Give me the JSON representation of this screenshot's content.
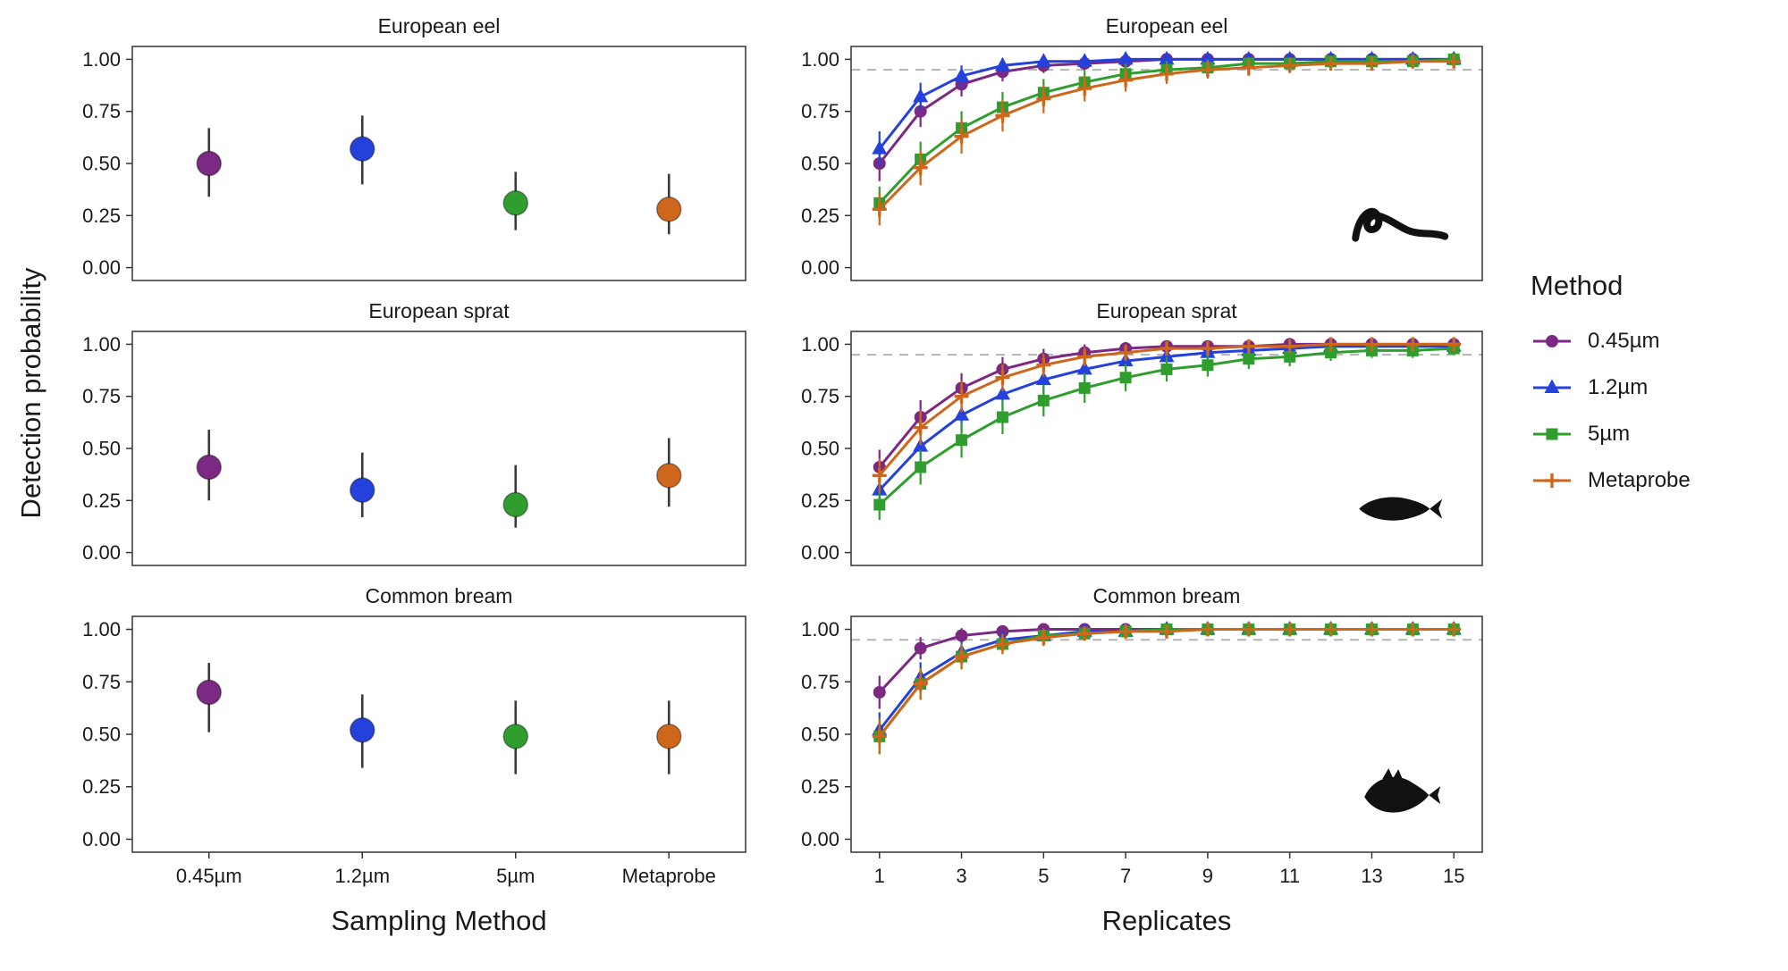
{
  "figure": {
    "ylabel": "Detection probability",
    "xlabel_left": "Sampling Method",
    "xlabel_right": "Replicates",
    "legend_title": "Method",
    "reference_line": 0.95,
    "panel_border_color": "#3f3f3f",
    "dashed_line_color": "#b3b3b3"
  },
  "methods": [
    {
      "label": "0.45µm",
      "color": "#7B2982",
      "marker": "circle"
    },
    {
      "label": "1.2µm",
      "color": "#2442DB",
      "marker": "triangle"
    },
    {
      "label": "5µm",
      "color": "#2F9E2F",
      "marker": "square"
    },
    {
      "label": "Metaprobe",
      "color": "#CE671C",
      "marker": "cross"
    }
  ],
  "chart_data": [
    {
      "id": "eel-dotplot",
      "type": "scatter",
      "panel": "dot",
      "title": "European eel",
      "categories": [
        "0.45µm",
        "1.2µm",
        "5µm",
        "Metaprobe"
      ],
      "values": [
        0.5,
        0.57,
        0.31,
        0.28
      ],
      "ci_low": [
        0.34,
        0.4,
        0.18,
        0.16
      ],
      "ci_high": [
        0.67,
        0.73,
        0.46,
        0.45
      ],
      "ylim": [
        0,
        1
      ],
      "yticks": [
        "0.00",
        "0.25",
        "0.50",
        "0.75",
        "1.00"
      ],
      "show_x_labels": false
    },
    {
      "id": "eel-curves",
      "type": "line",
      "panel": "accumulation",
      "title": "European eel",
      "icon": "eel",
      "x": [
        1,
        2,
        3,
        4,
        5,
        6,
        7,
        8,
        9,
        10,
        11,
        12,
        13,
        14,
        15
      ],
      "xticks": [
        1,
        3,
        5,
        7,
        9,
        11,
        13,
        15
      ],
      "ref_line": 0.95,
      "ylim": [
        0,
        1
      ],
      "yticks": [
        "0.00",
        "0.25",
        "0.50",
        "0.75",
        "1.00"
      ],
      "series": [
        {
          "name": "0.45µm",
          "values": [
            0.5,
            0.75,
            0.88,
            0.94,
            0.97,
            0.98,
            0.99,
            1.0,
            1.0,
            1.0,
            1.0,
            1.0,
            1.0,
            1.0,
            1.0
          ]
        },
        {
          "name": "1.2µm",
          "values": [
            0.57,
            0.82,
            0.92,
            0.97,
            0.99,
            0.99,
            1.0,
            1.0,
            1.0,
            1.0,
            1.0,
            1.0,
            1.0,
            1.0,
            1.0
          ]
        },
        {
          "name": "5µm",
          "values": [
            0.31,
            0.52,
            0.67,
            0.77,
            0.84,
            0.89,
            0.93,
            0.95,
            0.96,
            0.98,
            0.98,
            0.99,
            0.99,
            0.99,
            1.0
          ]
        },
        {
          "name": "Metaprobe",
          "values": [
            0.28,
            0.48,
            0.63,
            0.73,
            0.81,
            0.86,
            0.9,
            0.93,
            0.95,
            0.96,
            0.97,
            0.98,
            0.98,
            0.99,
            0.99
          ]
        }
      ],
      "show_x_labels": false
    },
    {
      "id": "sprat-dotplot",
      "type": "scatter",
      "panel": "dot",
      "title": "European sprat",
      "categories": [
        "0.45µm",
        "1.2µm",
        "5µm",
        "Metaprobe"
      ],
      "values": [
        0.41,
        0.3,
        0.23,
        0.37
      ],
      "ci_low": [
        0.25,
        0.17,
        0.12,
        0.22
      ],
      "ci_high": [
        0.59,
        0.48,
        0.42,
        0.55
      ],
      "ylim": [
        0,
        1
      ],
      "yticks": [
        "0.00",
        "0.25",
        "0.50",
        "0.75",
        "1.00"
      ],
      "show_x_labels": false
    },
    {
      "id": "sprat-curves",
      "type": "line",
      "panel": "accumulation",
      "title": "European sprat",
      "icon": "sprat",
      "x": [
        1,
        2,
        3,
        4,
        5,
        6,
        7,
        8,
        9,
        10,
        11,
        12,
        13,
        14,
        15
      ],
      "xticks": [
        1,
        3,
        5,
        7,
        9,
        11,
        13,
        15
      ],
      "ref_line": 0.95,
      "ylim": [
        0,
        1
      ],
      "yticks": [
        "0.00",
        "0.25",
        "0.50",
        "0.75",
        "1.00"
      ],
      "series": [
        {
          "name": "0.45µm",
          "values": [
            0.41,
            0.65,
            0.79,
            0.88,
            0.93,
            0.96,
            0.98,
            0.99,
            0.99,
            0.99,
            1.0,
            1.0,
            1.0,
            1.0,
            1.0
          ]
        },
        {
          "name": "1.2µm",
          "values": [
            0.3,
            0.51,
            0.66,
            0.76,
            0.83,
            0.88,
            0.92,
            0.94,
            0.96,
            0.97,
            0.98,
            0.99,
            0.99,
            0.99,
            0.99
          ]
        },
        {
          "name": "5µm",
          "values": [
            0.23,
            0.41,
            0.54,
            0.65,
            0.73,
            0.79,
            0.84,
            0.88,
            0.9,
            0.93,
            0.94,
            0.96,
            0.97,
            0.97,
            0.98
          ]
        },
        {
          "name": "Metaprobe",
          "values": [
            0.37,
            0.6,
            0.75,
            0.84,
            0.9,
            0.94,
            0.96,
            0.98,
            0.98,
            0.99,
            0.99,
            1.0,
            1.0,
            1.0,
            1.0
          ]
        }
      ],
      "show_x_labels": false
    },
    {
      "id": "bream-dotplot",
      "type": "scatter",
      "panel": "dot",
      "title": "Common bream",
      "categories": [
        "0.45µm",
        "1.2µm",
        "5µm",
        "Metaprobe"
      ],
      "values": [
        0.7,
        0.52,
        0.49,
        0.49
      ],
      "ci_low": [
        0.51,
        0.34,
        0.31,
        0.31
      ],
      "ci_high": [
        0.84,
        0.69,
        0.66,
        0.66
      ],
      "ylim": [
        0,
        1
      ],
      "yticks": [
        "0.00",
        "0.25",
        "0.50",
        "0.75",
        "1.00"
      ],
      "show_x_labels": true
    },
    {
      "id": "bream-curves",
      "type": "line",
      "panel": "accumulation",
      "title": "Common bream",
      "icon": "bream",
      "x": [
        1,
        2,
        3,
        4,
        5,
        6,
        7,
        8,
        9,
        10,
        11,
        12,
        13,
        14,
        15
      ],
      "xticks": [
        1,
        3,
        5,
        7,
        9,
        11,
        13,
        15
      ],
      "ref_line": 0.95,
      "ylim": [
        0,
        1
      ],
      "yticks": [
        "0.00",
        "0.25",
        "0.50",
        "0.75",
        "1.00"
      ],
      "series": [
        {
          "name": "0.45µm",
          "values": [
            0.7,
            0.91,
            0.97,
            0.99,
            1.0,
            1.0,
            1.0,
            1.0,
            1.0,
            1.0,
            1.0,
            1.0,
            1.0,
            1.0,
            1.0
          ]
        },
        {
          "name": "1.2µm",
          "values": [
            0.52,
            0.77,
            0.89,
            0.95,
            0.97,
            0.99,
            0.99,
            1.0,
            1.0,
            1.0,
            1.0,
            1.0,
            1.0,
            1.0,
            1.0
          ]
        },
        {
          "name": "5µm",
          "values": [
            0.49,
            0.74,
            0.87,
            0.93,
            0.97,
            0.98,
            0.99,
            1.0,
            1.0,
            1.0,
            1.0,
            1.0,
            1.0,
            1.0,
            1.0
          ]
        },
        {
          "name": "Metaprobe",
          "values": [
            0.49,
            0.74,
            0.87,
            0.93,
            0.96,
            0.98,
            0.99,
            0.99,
            1.0,
            1.0,
            1.0,
            1.0,
            1.0,
            1.0,
            1.0
          ]
        }
      ],
      "show_x_labels": true
    }
  ]
}
